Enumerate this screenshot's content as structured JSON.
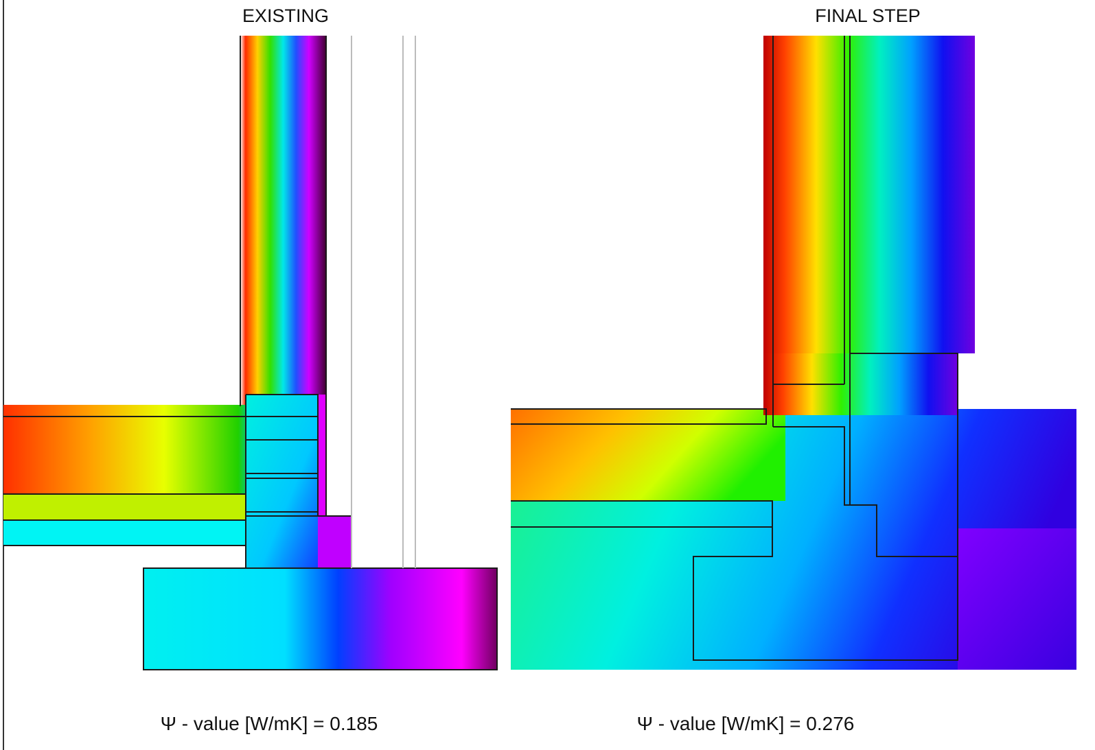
{
  "panels": [
    {
      "title": "EXISTING",
      "psi_label": "Ψ - value [W/mK] = 0.185"
    },
    {
      "title": "FINAL STEP",
      "psi_label": "Ψ - value [W/mK] = 0.276"
    }
  ]
}
